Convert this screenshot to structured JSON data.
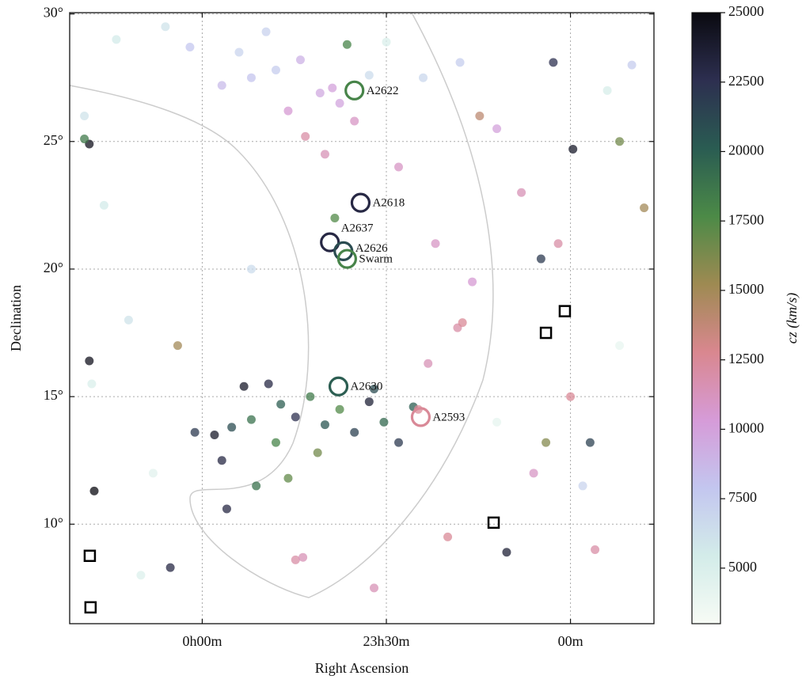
{
  "chart_data": {
    "type": "scatter",
    "x_label": "Right Ascension",
    "y_label": "Declination",
    "colorbar_label": "cz (km/s)",
    "xlim": [
      5.4,
      -18.4
    ],
    "ylim": [
      6.1,
      30.05
    ],
    "xticks": [
      {
        "value": 0,
        "label": "0h00m"
      },
      {
        "value": -7.5,
        "label": "23h30m"
      },
      {
        "value": -15,
        "label": "00m"
      }
    ],
    "yticks": [
      {
        "value": 10,
        "label": "10°"
      },
      {
        "value": 15,
        "label": "15°"
      },
      {
        "value": 20,
        "label": "20°"
      },
      {
        "value": 25,
        "label": "25°"
      },
      {
        "value": 30,
        "label": "30°"
      }
    ],
    "clim": [
      3000,
      25000
    ],
    "cticks": [
      5000,
      7500,
      10000,
      12500,
      15000,
      17500,
      20000,
      22500,
      25000
    ],
    "colormap": [
      "#f7fbf5",
      "#d3ece9",
      "#c3c6ef",
      "#d69bd8",
      "#d9878f",
      "#9e8a52",
      "#4c8a47",
      "#2a5c52",
      "#2d2f50",
      "#0a0a10"
    ],
    "grid": true,
    "points": {
      "x": [
        -2,
        -3,
        -4,
        -4.8,
        -5.3,
        -5.6,
        -1.5,
        -0.8,
        -6.8,
        -3.5,
        -2.6,
        -6.2,
        -4.2,
        -5,
        -7.5,
        0.5,
        1.5,
        3.5,
        -9,
        -10.5,
        0.3,
        -0.5,
        -1.2,
        -2,
        -2.7,
        -3.2,
        -3.8,
        -4.4,
        -5,
        -5.6,
        -6.2,
        -6.8,
        -7.4,
        -8,
        -8.6,
        -1.7,
        -3,
        -4.7,
        -7,
        -2.2,
        -1,
        -3.5,
        -10.4,
        -10.6,
        -9.2,
        -3.8,
        -4.1,
        -8.8,
        -9.5,
        -11,
        -13,
        -14.5,
        -8,
        -12,
        -15,
        -13.5,
        -16,
        -10,
        -7,
        4,
        3,
        2,
        4.5,
        -17,
        -16.5,
        -12,
        2.5,
        -2,
        -15.5,
        -17.5,
        4.8,
        4.6,
        4.4,
        4.6,
        1.3,
        -13.8,
        -15.8,
        -12.4,
        -14.3,
        -15.1,
        -0.8,
        -5.9,
        -5.4,
        4.8,
        -17,
        -18,
        -14,
        1,
        -11.3
      ],
      "y": [
        27.5,
        27.8,
        28.2,
        26.9,
        27.1,
        26.5,
        28.5,
        27.2,
        27.6,
        26.2,
        29.3,
        25.8,
        25.2,
        24.5,
        28.9,
        28.7,
        29.5,
        29,
        27.5,
        28.1,
        13.6,
        13.5,
        13.8,
        14.1,
        15.5,
        14.7,
        14.2,
        15,
        13.9,
        14.5,
        13.6,
        14.8,
        14,
        13.2,
        14.6,
        15.4,
        13.2,
        12.8,
        15.3,
        11.5,
        10.6,
        11.8,
        17.7,
        17.9,
        16.3,
        8.6,
        8.7,
        14.5,
        21,
        19.5,
        23,
        21,
        24,
        25.5,
        15,
        12,
        9,
        9.5,
        7.5,
        22.5,
        18,
        12,
        15.5,
        17,
        27,
        14,
        8,
        20,
        11.5,
        28,
        26,
        24.9,
        11.3,
        16.4,
        8.3,
        20.4,
        13.2,
        8.9,
        28.1,
        24.7,
        12.5,
        28.8,
        22,
        25.1,
        25,
        22.4,
        13.2,
        17,
        26
      ],
      "cz": [
        8000,
        7500,
        9000,
        9500,
        10000,
        9800,
        7000,
        8500,
        6500,
        10500,
        7200,
        11000,
        12000,
        11500,
        5000,
        7800,
        6000,
        5500,
        6800,
        7400,
        22000,
        24000,
        21000,
        19000,
        23000,
        20000,
        22500,
        18500,
        20500,
        17500,
        21500,
        23500,
        19500,
        22000,
        20000,
        24000,
        18000,
        16500,
        21000,
        19000,
        23000,
        17000,
        12000,
        12500,
        11500,
        12000,
        11500,
        12500,
        11000,
        10500,
        11500,
        12000,
        11000,
        10000,
        12500,
        11000,
        12000,
        12500,
        11500,
        5500,
        6000,
        4500,
        5000,
        4000,
        5200,
        4200,
        4800,
        6500,
        7000,
        7500,
        6000,
        24500,
        25000,
        24500,
        23000,
        22000,
        21500,
        23500,
        22500,
        24000,
        23000,
        18000,
        17500,
        18500,
        16500,
        15000,
        16000,
        15000,
        14000
      ]
    },
    "clusters": [
      {
        "name": "A2622",
        "x": -6.2,
        "y": 27.0,
        "cz": 18000
      },
      {
        "name": "A2618",
        "x": -6.45,
        "y": 22.6,
        "cz": 23000
      },
      {
        "name": "A2637",
        "x": -5.2,
        "y": 21.05,
        "cz": 23000
      },
      {
        "name": "A2626",
        "x": -5.75,
        "y": 20.7,
        "cz": 21000
      },
      {
        "name": "Swarm",
        "x": -5.9,
        "y": 20.4,
        "cz": 18000
      },
      {
        "name": "A2630",
        "x": -5.55,
        "y": 15.4,
        "cz": 20000
      },
      {
        "name": "A2593",
        "x": -8.9,
        "y": 14.2,
        "cz": 12500
      }
    ],
    "squares": {
      "x": [
        4.58,
        4.55,
        -14.0,
        -14.77,
        -11.87
      ],
      "y": [
        8.76,
        6.74,
        17.5,
        18.35,
        10.06
      ]
    }
  }
}
